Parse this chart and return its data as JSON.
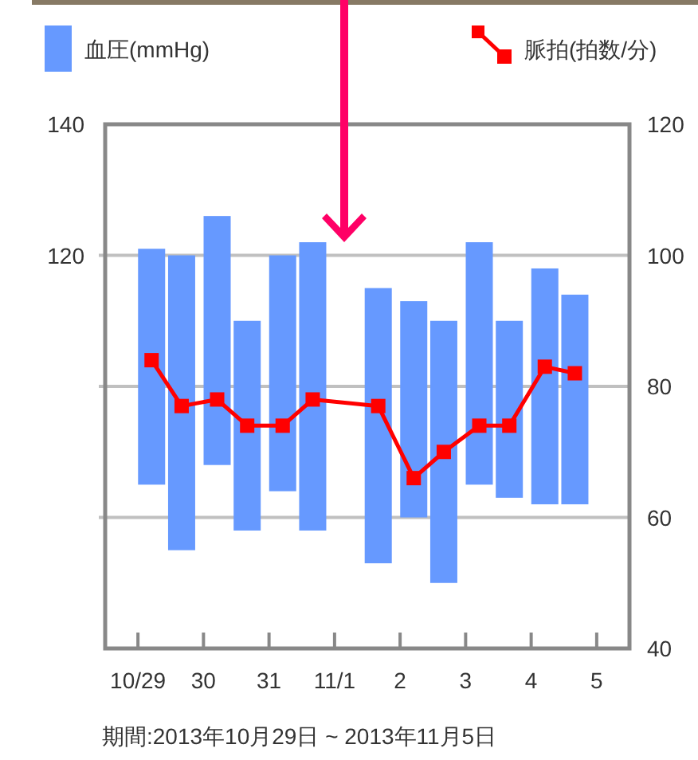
{
  "chart_data": {
    "type": "bar",
    "legend": "top",
    "grid": "y",
    "xlim": [
      "2013-10-28T12:00",
      "2013-11-05T12:00"
    ],
    "xticks": [
      {
        "value": "2013-10-29",
        "label": "10/29"
      },
      {
        "value": "2013-10-30",
        "label": "30"
      },
      {
        "value": "2013-10-31",
        "label": "31"
      },
      {
        "value": "2013-11-01",
        "label": "11/1"
      },
      {
        "value": "2013-11-02",
        "label": "2"
      },
      {
        "value": "2013-11-03",
        "label": "3"
      },
      {
        "value": "2013-11-04",
        "label": "4"
      },
      {
        "value": "2013-11-05",
        "label": "5"
      }
    ],
    "ylim": [
      60,
      140
    ],
    "yticks": [
      140,
      120,
      {
        "value": 100,
        "label": null
      },
      {
        "value": 80,
        "label": null
      },
      {
        "value": 60,
        "label": null
      }
    ],
    "y2lim": [
      40,
      120
    ],
    "y2ticks": [
      120,
      100,
      80,
      60,
      40
    ],
    "annotations": [
      "期間:2013年10月29日 ~ 2013年11月5日"
    ],
    "series": [
      {
        "name": "血圧(mmHg)",
        "color": "#6699ff",
        "x": [
          "2013-10-29T05:00",
          "2013-10-29T16:00",
          "2013-10-30T05:00",
          "2013-10-30T16:00",
          "2013-10-31T05:00",
          "2013-10-31T16:00",
          "2013-11-01T16:00",
          "2013-11-02T05:00",
          "2013-11-02T16:00",
          "2013-11-03T05:00",
          "2013-11-03T16:00",
          "2013-11-04T05:00",
          "2013-11-04T16:00"
        ],
        "base": [
          85,
          75,
          88,
          78,
          84,
          78,
          73,
          80,
          70,
          85,
          83,
          82,
          82
        ],
        "values": [
          36,
          45,
          38,
          32,
          36,
          44,
          42,
          33,
          40,
          37,
          27,
          36,
          32
        ]
      },
      {
        "name": "脈拍(拍数/分)",
        "type": "line",
        "axis": "y2",
        "marker": "square",
        "line_style": "solid",
        "color": "#ff0000",
        "x": [
          "2013-10-29T05:00",
          "2013-10-29T16:00",
          "2013-10-30T05:00",
          "2013-10-30T16:00",
          "2013-10-31T05:00",
          "2013-10-31T16:00",
          "2013-11-01T16:00",
          "2013-11-02T05:00",
          "2013-11-02T16:00",
          "2013-11-03T05:00",
          "2013-11-03T16:00",
          "2013-11-04T05:00",
          "2013-11-04T16:00"
        ],
        "values": [
          84,
          77,
          78,
          74,
          74,
          78,
          77,
          66,
          70,
          74,
          74,
          83,
          82
        ]
      }
    ]
  }
}
